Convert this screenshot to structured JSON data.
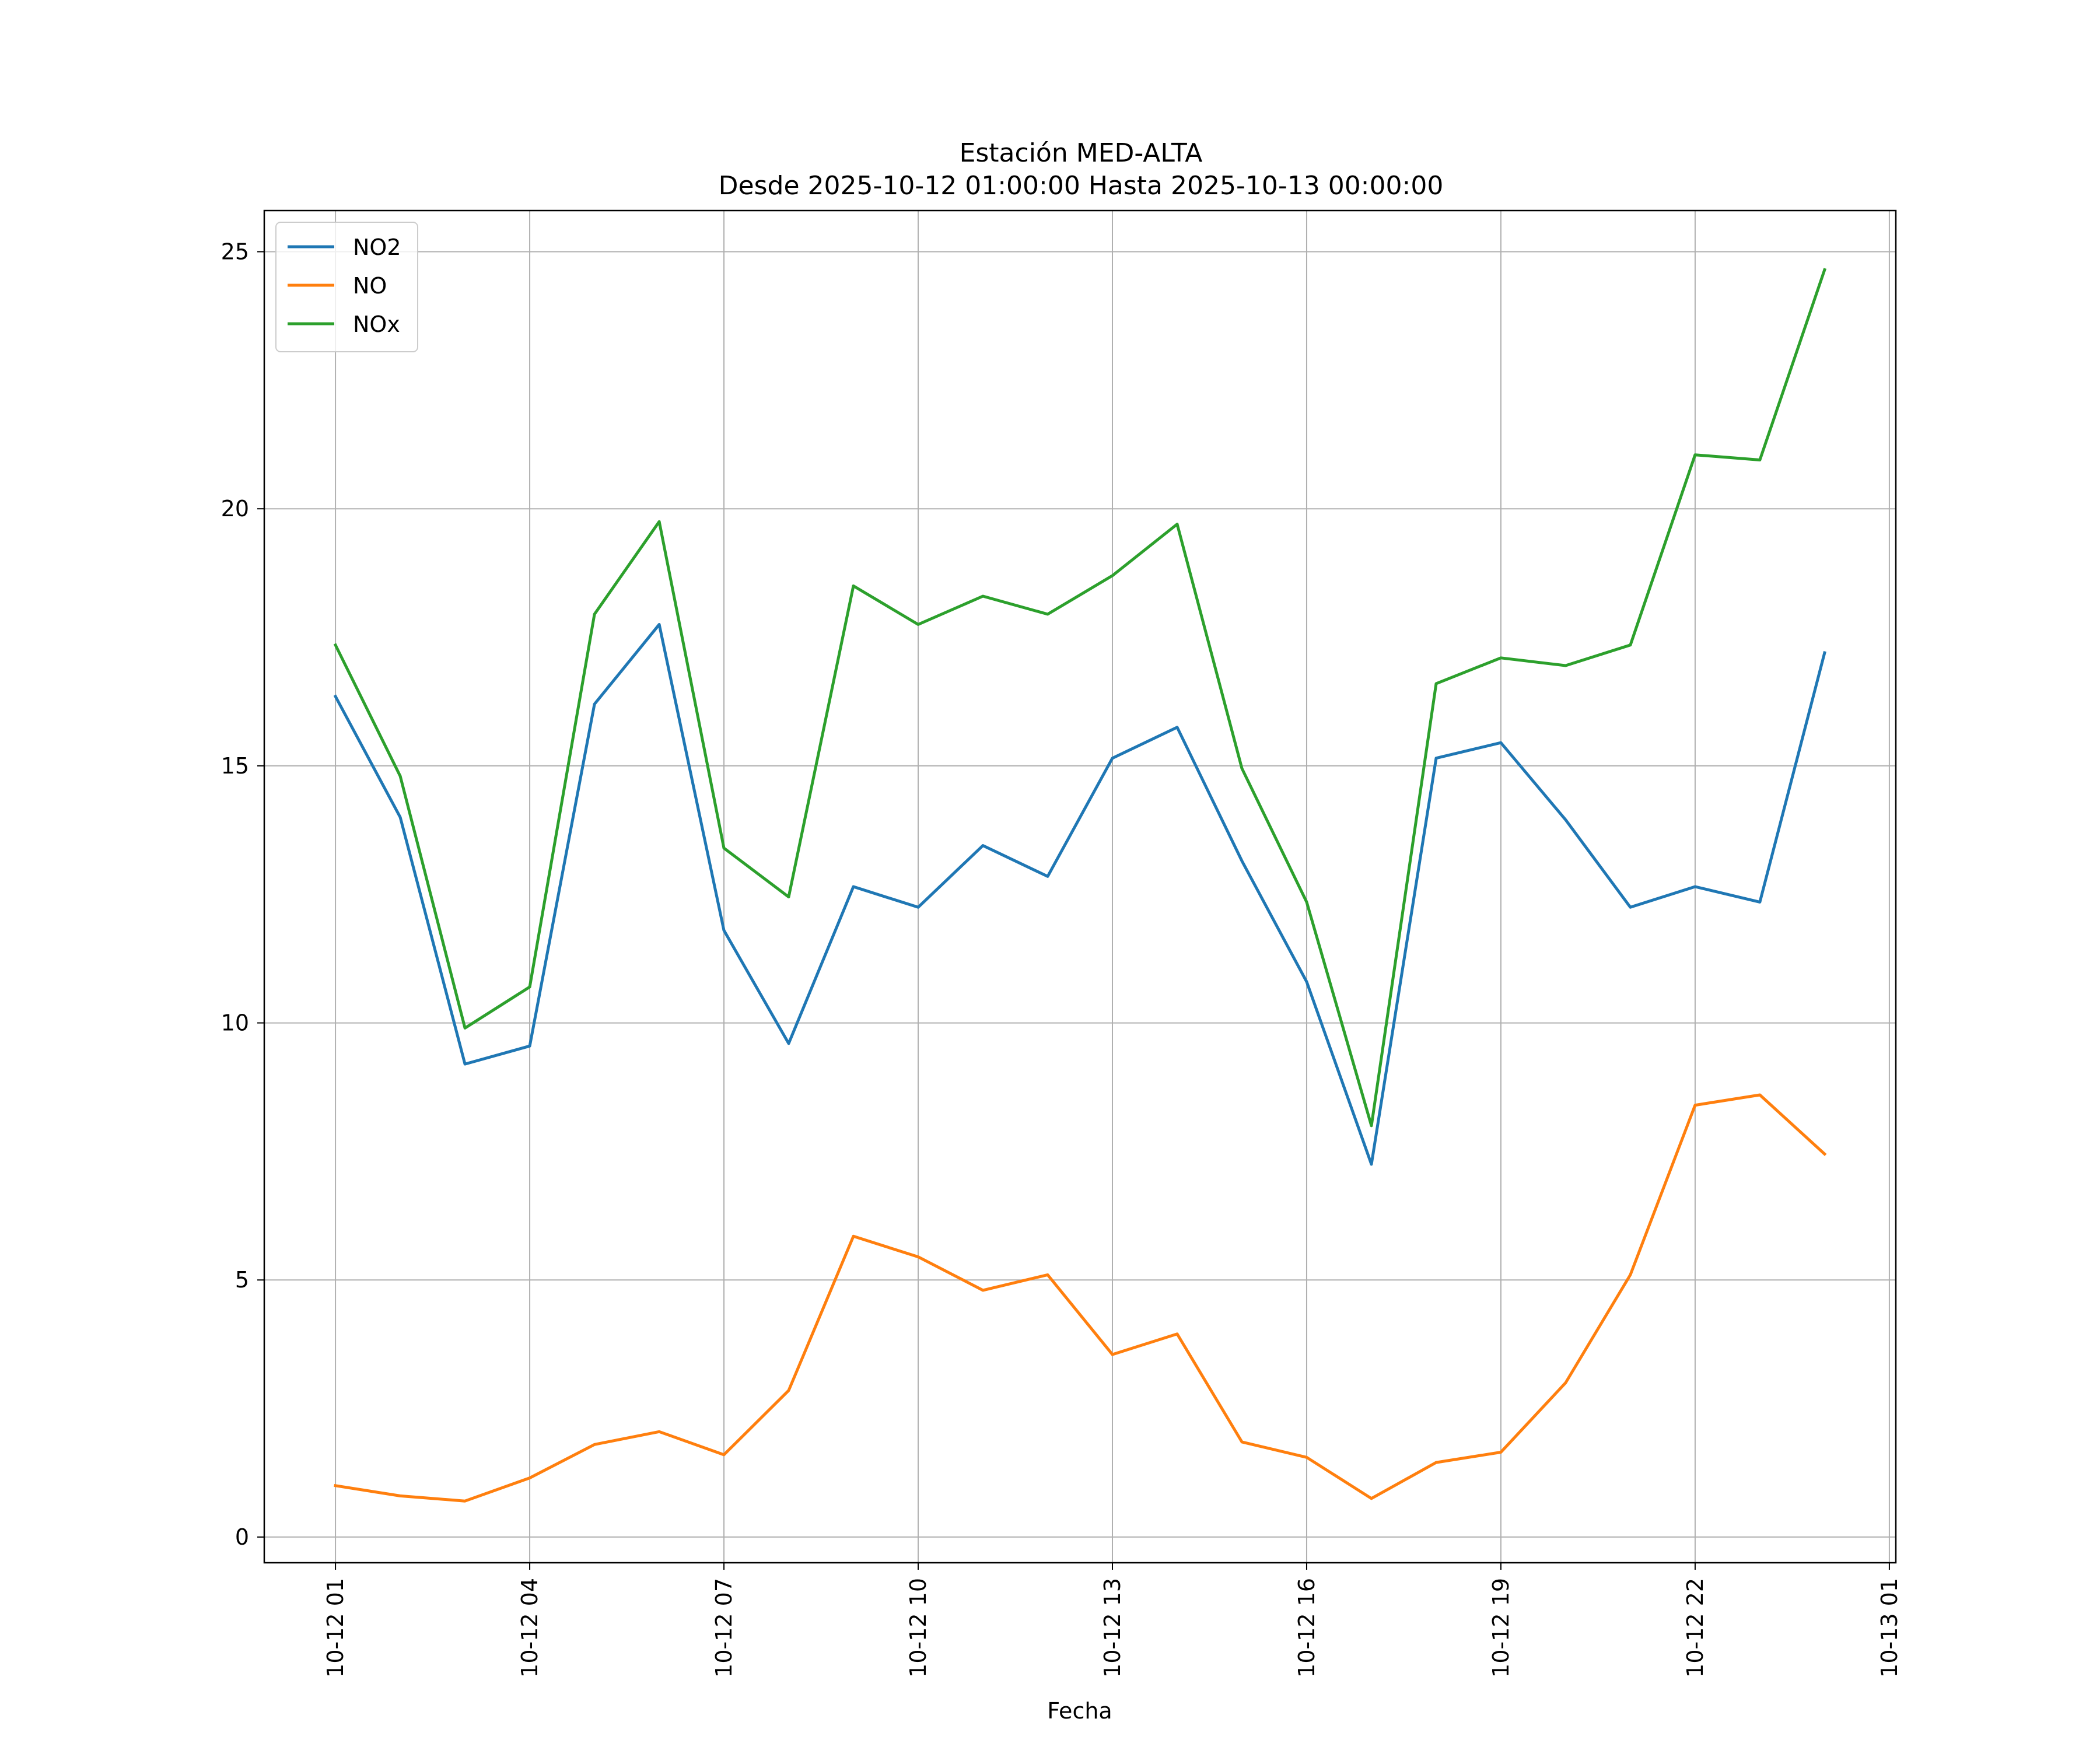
{
  "chart_data": {
    "type": "line",
    "title_line1": "Estación MED-ALTA",
    "title_line2": "Desde 2025-10-12 01:00:00 Hasta 2025-10-13 00:00:00",
    "xlabel": "Fecha",
    "ylabel": "",
    "x_hours": [
      1,
      2,
      3,
      4,
      5,
      6,
      7,
      8,
      9,
      10,
      11,
      12,
      13,
      14,
      15,
      16,
      17,
      18,
      19,
      20,
      21,
      22,
      23,
      24
    ],
    "xlim": [
      -0.1,
      25.1
    ],
    "ylim": [
      -0.5,
      25.8
    ],
    "x_ticks": [
      {
        "hour": 1,
        "label": "10-12 01"
      },
      {
        "hour": 4,
        "label": "10-12 04"
      },
      {
        "hour": 7,
        "label": "10-12 07"
      },
      {
        "hour": 10,
        "label": "10-12 10"
      },
      {
        "hour": 13,
        "label": "10-12 13"
      },
      {
        "hour": 16,
        "label": "10-12 16"
      },
      {
        "hour": 19,
        "label": "10-12 19"
      },
      {
        "hour": 22,
        "label": "10-12 22"
      },
      {
        "hour": 25,
        "label": "10-13 01"
      }
    ],
    "y_ticks": [
      {
        "value": 0,
        "label": "0"
      },
      {
        "value": 5,
        "label": "5"
      },
      {
        "value": 10,
        "label": "10"
      },
      {
        "value": 15,
        "label": "15"
      },
      {
        "value": 20,
        "label": "20"
      },
      {
        "value": 25,
        "label": "25"
      }
    ],
    "grid": true,
    "legend_position": "top-left",
    "series": [
      {
        "name": "NO2",
        "color": "#1f77b4",
        "values": [
          16.35,
          14.0,
          9.2,
          9.55,
          16.2,
          17.75,
          11.8,
          9.6,
          12.65,
          12.25,
          13.45,
          12.85,
          15.15,
          15.75,
          13.15,
          10.8,
          7.25,
          15.15,
          15.45,
          13.95,
          12.25,
          12.65,
          12.35,
          17.2
        ]
      },
      {
        "name": "NO",
        "color": "#ff7f0e",
        "values": [
          1.0,
          0.8,
          0.7,
          1.15,
          1.8,
          2.05,
          1.6,
          2.85,
          5.85,
          5.45,
          4.8,
          5.1,
          3.55,
          3.95,
          1.85,
          1.55,
          0.75,
          1.45,
          1.65,
          3.0,
          5.1,
          8.4,
          8.6,
          7.45
        ]
      },
      {
        "name": "NOx",
        "color": "#2ca02c",
        "values": [
          17.35,
          14.8,
          9.9,
          10.7,
          17.95,
          19.75,
          13.4,
          12.45,
          18.5,
          17.75,
          18.3,
          17.95,
          18.7,
          19.7,
          14.95,
          12.35,
          8.0,
          16.6,
          17.1,
          16.95,
          17.35,
          21.05,
          20.95,
          24.65
        ]
      }
    ]
  }
}
